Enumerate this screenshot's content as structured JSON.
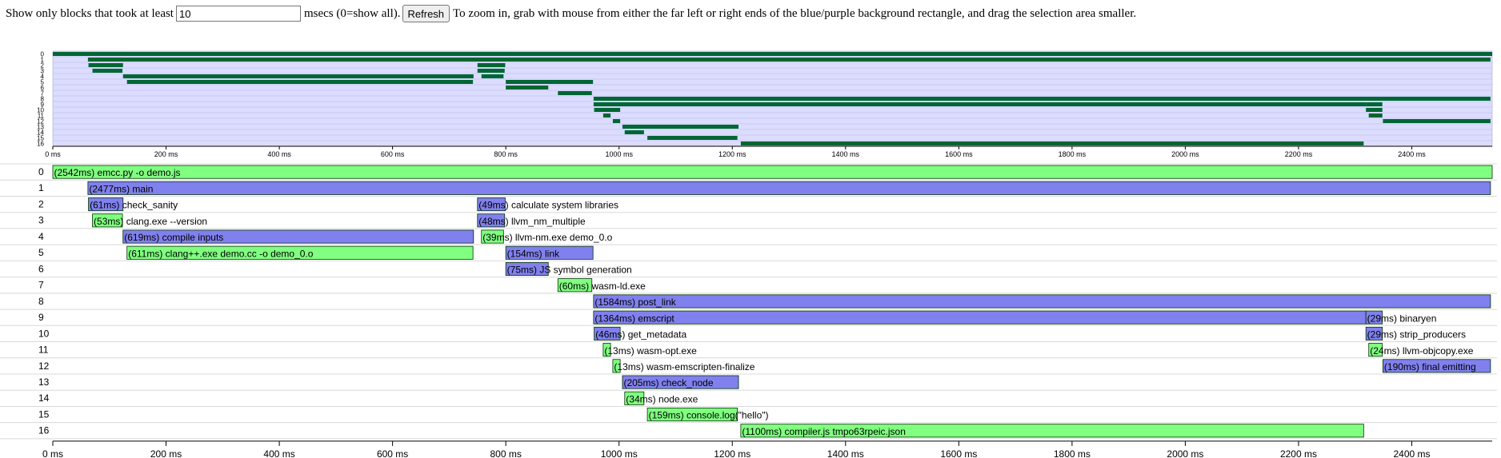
{
  "toolbar": {
    "prefix": "Show only blocks that took at least",
    "threshold_value": "10",
    "suffix": "msecs (0=show all).",
    "refresh_label": "Refresh",
    "instructions": "To zoom in, grab with mouse from either the far left or right ends of the blue/purple background rectangle, and drag the selection area smaller."
  },
  "colors": {
    "green_bar": "#80ff80",
    "purple_bar": "#8080ee",
    "overview_bg": "#dcdcff",
    "overview_bar": "#006633",
    "bar_border": "#003300"
  },
  "chart_data": {
    "type": "timeline",
    "axis_ticks": [
      "0 ms",
      "200 ms",
      "400 ms",
      "600 ms",
      "800 ms",
      "1000 ms",
      "1200 ms",
      "1400 ms",
      "1600 ms",
      "1800 ms",
      "2000 ms",
      "2200 ms",
      "2400 ms"
    ],
    "tick_values": [
      0,
      200,
      400,
      600,
      800,
      1000,
      1200,
      1400,
      1600,
      1800,
      2000,
      2200,
      2400
    ],
    "xlim": [
      0,
      2542
    ],
    "rows": [
      "0",
      "1",
      "2",
      "3",
      "4",
      "5",
      "6",
      "7",
      "8",
      "9",
      "10",
      "11",
      "12",
      "13",
      "14",
      "15",
      "16"
    ],
    "blocks": [
      {
        "row": 0,
        "start": 0,
        "dur": 2542,
        "dur_label": "(2542ms)",
        "name": "emcc.py -o demo.js",
        "color": "green"
      },
      {
        "row": 1,
        "start": 62,
        "dur": 2477,
        "dur_label": "(2477ms)",
        "name": "main",
        "color": "purple"
      },
      {
        "row": 2,
        "start": 63,
        "dur": 61,
        "dur_label": "(61ms)",
        "name": "check_sanity",
        "color": "purple"
      },
      {
        "row": 3,
        "start": 70,
        "dur": 53,
        "dur_label": "(53ms)",
        "name": "clang.exe --version",
        "color": "green"
      },
      {
        "row": 4,
        "start": 124,
        "dur": 619,
        "dur_label": "(619ms)",
        "name": "compile inputs",
        "color": "purple"
      },
      {
        "row": 5,
        "start": 131,
        "dur": 611,
        "dur_label": "(611ms)",
        "name": "clang++.exe demo.cc -o demo_0.o",
        "color": "green"
      },
      {
        "row": 2,
        "start": 750,
        "dur": 49,
        "dur_label": "(49ms)",
        "name": "calculate system libraries",
        "color": "purple"
      },
      {
        "row": 3,
        "start": 750,
        "dur": 48,
        "dur_label": "(48ms)",
        "name": "llvm_nm_multiple",
        "color": "purple"
      },
      {
        "row": 4,
        "start": 757,
        "dur": 39,
        "dur_label": "(39ms)",
        "name": "llvm-nm.exe demo_0.o",
        "color": "green"
      },
      {
        "row": 5,
        "start": 800,
        "dur": 154,
        "dur_label": "(154ms)",
        "name": "link",
        "color": "purple"
      },
      {
        "row": 6,
        "start": 800,
        "dur": 75,
        "dur_label": "(75ms)",
        "name": "JS symbol generation",
        "color": "purple"
      },
      {
        "row": 7,
        "start": 892,
        "dur": 60,
        "dur_label": "(60ms)",
        "name": "wasm-ld.exe",
        "color": "green"
      },
      {
        "row": 8,
        "start": 955,
        "dur": 1584,
        "dur_label": "(1584ms)",
        "name": "post_link",
        "color": "purple"
      },
      {
        "row": 9,
        "start": 955,
        "dur": 1364,
        "dur_label": "(1364ms)",
        "name": "emscript",
        "color": "purple"
      },
      {
        "row": 10,
        "start": 956,
        "dur": 46,
        "dur_label": "(46ms)",
        "name": "get_metadata",
        "color": "purple"
      },
      {
        "row": 11,
        "start": 972,
        "dur": 13,
        "dur_label": "(13ms)",
        "name": "wasm-opt.exe",
        "color": "green"
      },
      {
        "row": 12,
        "start": 989,
        "dur": 13,
        "dur_label": "(13ms)",
        "name": "wasm-emscripten-finalize",
        "color": "green"
      },
      {
        "row": 13,
        "start": 1006,
        "dur": 205,
        "dur_label": "(205ms)",
        "name": "check_node",
        "color": "purple"
      },
      {
        "row": 14,
        "start": 1010,
        "dur": 34,
        "dur_label": "(34ms)",
        "name": "node.exe",
        "color": "green"
      },
      {
        "row": 15,
        "start": 1050,
        "dur": 159,
        "dur_label": "(159ms)",
        "name": "console.log(\"hello\")",
        "color": "green"
      },
      {
        "row": 16,
        "start": 1215,
        "dur": 1100,
        "dur_label": "(1100ms)",
        "name": "compiler.js tmpo63rpeic.json",
        "color": "green"
      },
      {
        "row": 9,
        "start": 2319,
        "dur": 29,
        "dur_label": "(29ms)",
        "name": "binaryen",
        "color": "purple"
      },
      {
        "row": 10,
        "start": 2319,
        "dur": 29,
        "dur_label": "(29ms)",
        "name": "strip_producers",
        "color": "purple"
      },
      {
        "row": 11,
        "start": 2324,
        "dur": 24,
        "dur_label": "(24ms)",
        "name": "llvm-objcopy.exe",
        "color": "green"
      },
      {
        "row": 12,
        "start": 2349,
        "dur": 190,
        "dur_label": "(190ms)",
        "name": "final emitting",
        "color": "purple"
      }
    ]
  }
}
